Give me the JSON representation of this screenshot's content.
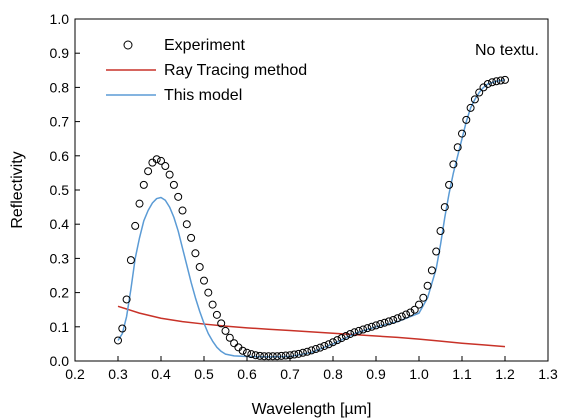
{
  "chart_data": {
    "type": "line",
    "title": "",
    "annotation": "No textu.",
    "xlabel": "Wavelength [µm]",
    "ylabel": "Reflectivity",
    "xlim": [
      0.2,
      1.3
    ],
    "ylim": [
      0.0,
      1.0
    ],
    "xticks": [
      "0.2",
      "0.3",
      "0.4",
      "0.5",
      "0.6",
      "0.7",
      "0.8",
      "0.9",
      "1.0",
      "1.1",
      "1.2",
      "1.3"
    ],
    "yticks": [
      "0.0",
      "0.1",
      "0.2",
      "0.3",
      "0.4",
      "0.5",
      "0.6",
      "0.7",
      "0.8",
      "0.9",
      "1.0"
    ],
    "grid": false,
    "legend_position": "top-left",
    "series": [
      {
        "name": "Experiment",
        "style": "markers",
        "marker": "open-circle",
        "color": "#000000",
        "points": [
          [
            0.3,
            0.06
          ],
          [
            0.31,
            0.095
          ],
          [
            0.32,
            0.18
          ],
          [
            0.33,
            0.295
          ],
          [
            0.34,
            0.395
          ],
          [
            0.35,
            0.46
          ],
          [
            0.36,
            0.515
          ],
          [
            0.37,
            0.555
          ],
          [
            0.38,
            0.58
          ],
          [
            0.39,
            0.59
          ],
          [
            0.4,
            0.585
          ],
          [
            0.41,
            0.57
          ],
          [
            0.42,
            0.545
          ],
          [
            0.43,
            0.515
          ],
          [
            0.44,
            0.48
          ],
          [
            0.45,
            0.44
          ],
          [
            0.46,
            0.4
          ],
          [
            0.47,
            0.36
          ],
          [
            0.48,
            0.315
          ],
          [
            0.49,
            0.275
          ],
          [
            0.5,
            0.235
          ],
          [
            0.51,
            0.2
          ],
          [
            0.52,
            0.165
          ],
          [
            0.53,
            0.135
          ],
          [
            0.54,
            0.11
          ],
          [
            0.55,
            0.088
          ],
          [
            0.56,
            0.068
          ],
          [
            0.57,
            0.052
          ],
          [
            0.58,
            0.04
          ],
          [
            0.59,
            0.03
          ],
          [
            0.6,
            0.024
          ],
          [
            0.61,
            0.02
          ],
          [
            0.62,
            0.017
          ],
          [
            0.63,
            0.015
          ],
          [
            0.64,
            0.014
          ],
          [
            0.65,
            0.014
          ],
          [
            0.66,
            0.014
          ],
          [
            0.67,
            0.014
          ],
          [
            0.68,
            0.015
          ],
          [
            0.69,
            0.016
          ],
          [
            0.7,
            0.017
          ],
          [
            0.71,
            0.019
          ],
          [
            0.72,
            0.021
          ],
          [
            0.73,
            0.024
          ],
          [
            0.74,
            0.027
          ],
          [
            0.75,
            0.031
          ],
          [
            0.76,
            0.035
          ],
          [
            0.77,
            0.039
          ],
          [
            0.78,
            0.044
          ],
          [
            0.79,
            0.049
          ],
          [
            0.8,
            0.055
          ],
          [
            0.81,
            0.061
          ],
          [
            0.82,
            0.067
          ],
          [
            0.83,
            0.073
          ],
          [
            0.84,
            0.079
          ],
          [
            0.85,
            0.084
          ],
          [
            0.86,
            0.088
          ],
          [
            0.87,
            0.092
          ],
          [
            0.88,
            0.096
          ],
          [
            0.89,
            0.1
          ],
          [
            0.9,
            0.104
          ],
          [
            0.91,
            0.108
          ],
          [
            0.92,
            0.112
          ],
          [
            0.93,
            0.116
          ],
          [
            0.94,
            0.12
          ],
          [
            0.95,
            0.125
          ],
          [
            0.96,
            0.13
          ],
          [
            0.97,
            0.136
          ],
          [
            0.98,
            0.142
          ],
          [
            0.99,
            0.15
          ],
          [
            1.0,
            0.165
          ],
          [
            1.01,
            0.185
          ],
          [
            1.02,
            0.22
          ],
          [
            1.03,
            0.265
          ],
          [
            1.04,
            0.32
          ],
          [
            1.05,
            0.38
          ],
          [
            1.06,
            0.45
          ],
          [
            1.07,
            0.515
          ],
          [
            1.08,
            0.575
          ],
          [
            1.09,
            0.625
          ],
          [
            1.1,
            0.665
          ],
          [
            1.11,
            0.705
          ],
          [
            1.12,
            0.74
          ],
          [
            1.13,
            0.765
          ],
          [
            1.14,
            0.785
          ],
          [
            1.15,
            0.8
          ],
          [
            1.16,
            0.81
          ],
          [
            1.17,
            0.815
          ],
          [
            1.18,
            0.818
          ],
          [
            1.19,
            0.82
          ],
          [
            1.2,
            0.822
          ]
        ]
      },
      {
        "name": "Ray Tracing method",
        "style": "line",
        "color": "#c83228",
        "points": [
          [
            0.3,
            0.16
          ],
          [
            0.35,
            0.14
          ],
          [
            0.4,
            0.125
          ],
          [
            0.45,
            0.115
          ],
          [
            0.5,
            0.108
          ],
          [
            0.55,
            0.102
          ],
          [
            0.6,
            0.097
          ],
          [
            0.65,
            0.093
          ],
          [
            0.7,
            0.089
          ],
          [
            0.75,
            0.085
          ],
          [
            0.8,
            0.081
          ],
          [
            0.85,
            0.077
          ],
          [
            0.9,
            0.073
          ],
          [
            0.95,
            0.069
          ],
          [
            1.0,
            0.064
          ],
          [
            1.05,
            0.058
          ],
          [
            1.1,
            0.052
          ],
          [
            1.15,
            0.047
          ],
          [
            1.2,
            0.042
          ]
        ]
      },
      {
        "name": "This model",
        "style": "line",
        "color": "#5b9bd5",
        "points": [
          [
            0.3,
            0.06
          ],
          [
            0.31,
            0.08
          ],
          [
            0.32,
            0.13
          ],
          [
            0.33,
            0.21
          ],
          [
            0.34,
            0.3
          ],
          [
            0.35,
            0.36
          ],
          [
            0.36,
            0.41
          ],
          [
            0.37,
            0.44
          ],
          [
            0.38,
            0.462
          ],
          [
            0.39,
            0.475
          ],
          [
            0.4,
            0.478
          ],
          [
            0.41,
            0.47
          ],
          [
            0.42,
            0.45
          ],
          [
            0.43,
            0.42
          ],
          [
            0.44,
            0.38
          ],
          [
            0.45,
            0.33
          ],
          [
            0.46,
            0.28
          ],
          [
            0.47,
            0.23
          ],
          [
            0.48,
            0.185
          ],
          [
            0.49,
            0.145
          ],
          [
            0.5,
            0.11
          ],
          [
            0.51,
            0.08
          ],
          [
            0.52,
            0.058
          ],
          [
            0.53,
            0.04
          ],
          [
            0.54,
            0.028
          ],
          [
            0.55,
            0.02
          ],
          [
            0.57,
            0.015
          ],
          [
            0.6,
            0.013
          ],
          [
            0.65,
            0.012
          ],
          [
            0.7,
            0.013
          ],
          [
            0.75,
            0.025
          ],
          [
            0.8,
            0.05
          ],
          [
            0.85,
            0.08
          ],
          [
            0.9,
            0.1
          ],
          [
            0.95,
            0.115
          ],
          [
            1.0,
            0.14
          ],
          [
            1.02,
            0.185
          ],
          [
            1.04,
            0.27
          ],
          [
            1.05,
            0.34
          ],
          [
            1.06,
            0.42
          ],
          [
            1.07,
            0.49
          ],
          [
            1.08,
            0.55
          ],
          [
            1.09,
            0.6
          ],
          [
            1.1,
            0.65
          ],
          [
            1.11,
            0.7
          ],
          [
            1.12,
            0.74
          ],
          [
            1.13,
            0.765
          ],
          [
            1.14,
            0.785
          ],
          [
            1.15,
            0.8
          ],
          [
            1.16,
            0.81
          ],
          [
            1.18,
            0.818
          ],
          [
            1.2,
            0.822
          ]
        ]
      }
    ]
  }
}
